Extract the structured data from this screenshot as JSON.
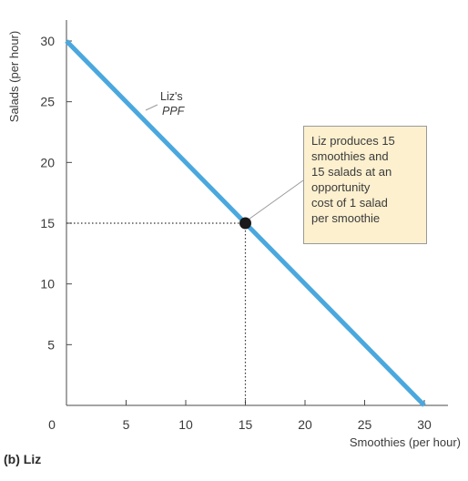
{
  "chart_data": {
    "type": "line",
    "xlabel": "Smoothies (per hour)",
    "ylabel": "Salads (per hour)",
    "xlim": [
      0,
      31
    ],
    "ylim": [
      0,
      32
    ],
    "x_ticks": [
      0,
      5,
      10,
      15,
      20,
      25,
      30
    ],
    "y_ticks": [
      5,
      10,
      15,
      20,
      25,
      30
    ],
    "grid": false,
    "series": [
      {
        "name": "Liz's PPF",
        "color": "#4aa8de",
        "points": [
          {
            "x": 0,
            "y": 30
          },
          {
            "x": 30,
            "y": 0
          }
        ]
      }
    ],
    "highlight_point": {
      "x": 15,
      "y": 15,
      "color": "#1a1a1a"
    },
    "ppf_label": {
      "prefix": "Liz's",
      "name": "PPF"
    },
    "annotation": {
      "lines": [
        "Liz produces 15",
        "smoothies and",
        "15 salads at an",
        "opportunity",
        "cost of 1 salad",
        "per smoothie"
      ],
      "background": "#fdf0cf"
    },
    "panel_caption": "(b) Liz"
  }
}
